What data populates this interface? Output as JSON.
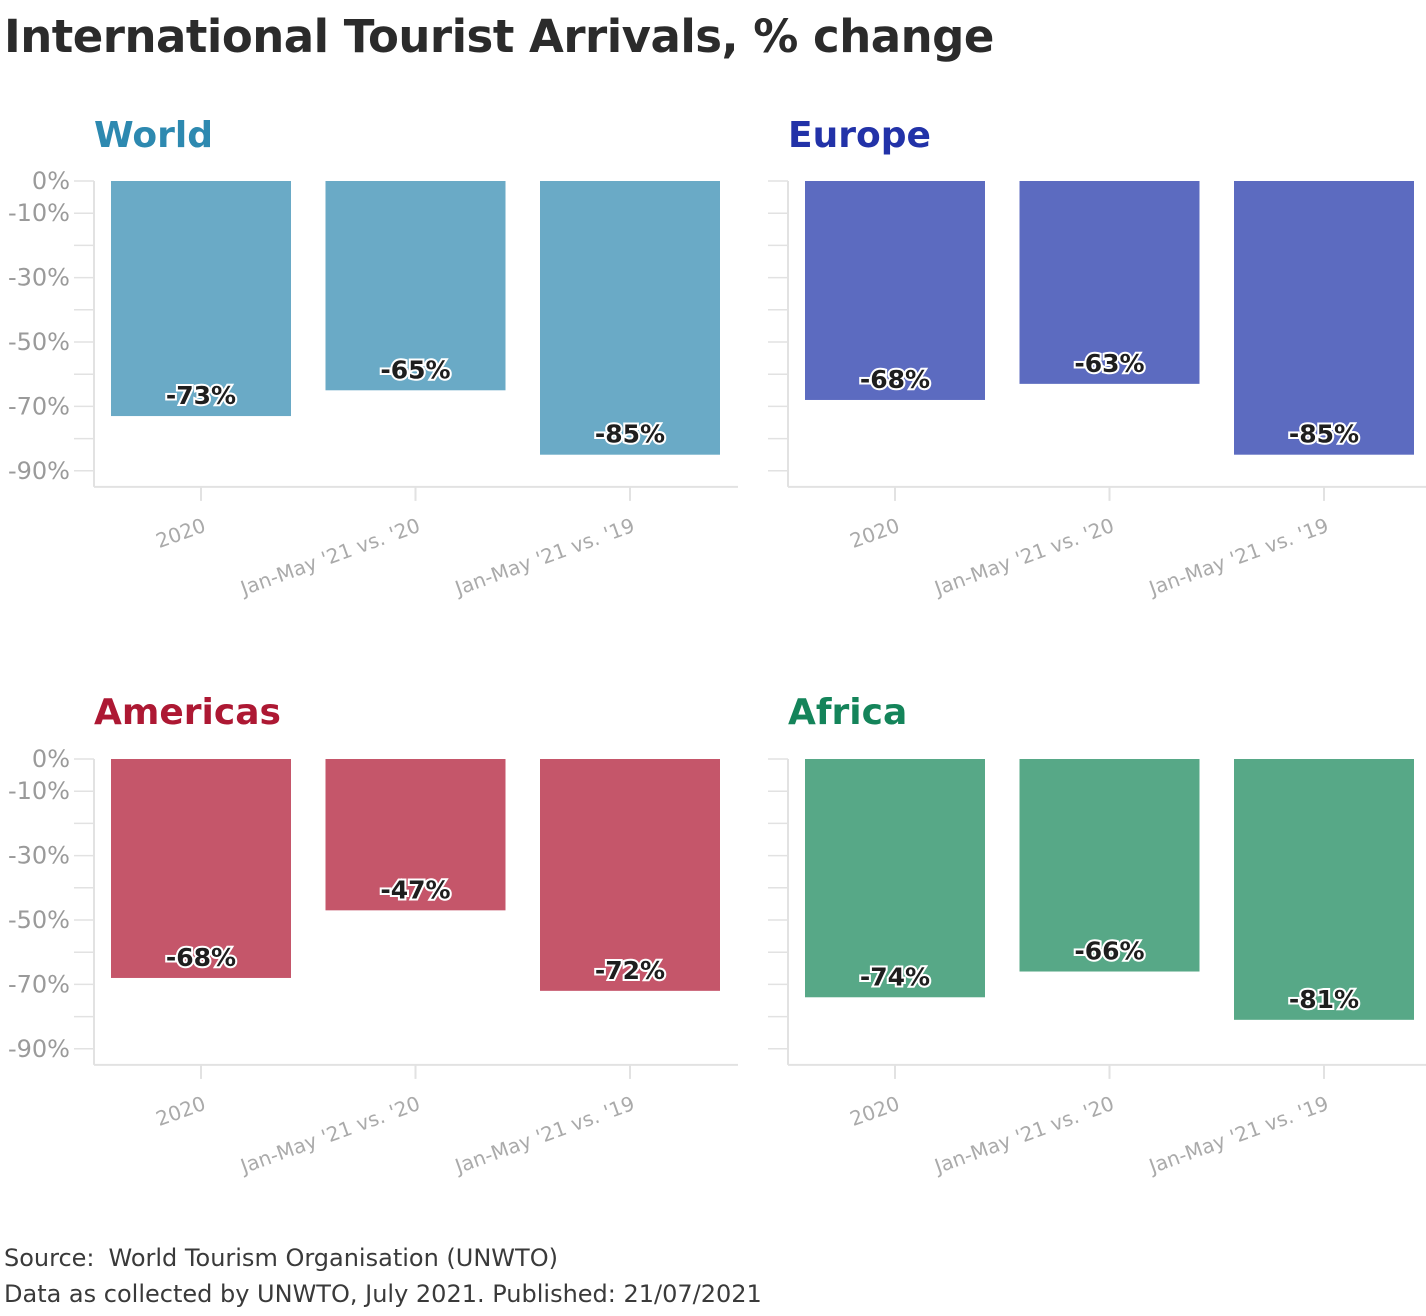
{
  "title": "International Tourist Arrivals, % change",
  "source_label": "Source:",
  "source_value": "World Tourism Organisation (UNWTO)",
  "note": "Data as collected by UNWTO, July 2021. Published: 21/07/2021",
  "chart_data": [
    {
      "type": "bar",
      "title": "World",
      "color": "#6aaac6",
      "title_color": "#2d89b0",
      "categories": [
        "2020",
        "Jan-May '21 vs. '20",
        "Jan-May '21 vs. '19"
      ],
      "values": [
        -73,
        -65,
        -85
      ],
      "value_labels": [
        "-73%",
        "-65%",
        "-85%"
      ],
      "ylim": [
        -95,
        0
      ],
      "yticks": [
        0,
        -10,
        -30,
        -50,
        -70,
        -90
      ],
      "ytick_labels": [
        "0%",
        "-10%",
        "-30%",
        "-50%",
        "-70%",
        "-90%"
      ]
    },
    {
      "type": "bar",
      "title": "Europe",
      "color": "#5c6bc0",
      "title_color": "#2232a8",
      "categories": [
        "2020",
        "Jan-May '21 vs. '20",
        "Jan-May '21 vs. '19"
      ],
      "values": [
        -68,
        -63,
        -85
      ],
      "value_labels": [
        "-68%",
        "-63%",
        "-85%"
      ],
      "ylim": [
        -95,
        0
      ],
      "yticks": [
        0,
        -10,
        -30,
        -50,
        -70,
        -90
      ],
      "ytick_labels": []
    },
    {
      "type": "bar",
      "title": "Americas",
      "color": "#c5566a",
      "title_color": "#ad1833",
      "categories": [
        "2020",
        "Jan-May '21 vs. '20",
        "Jan-May '21 vs. '19"
      ],
      "values": [
        -68,
        -47,
        -72
      ],
      "value_labels": [
        "-68%",
        "-47%",
        "-72%"
      ],
      "ylim": [
        -95,
        0
      ],
      "yticks": [
        0,
        -10,
        -30,
        -50,
        -70,
        -90
      ],
      "ytick_labels": [
        "0%",
        "-10%",
        "-30%",
        "-50%",
        "-70%",
        "-90%"
      ]
    },
    {
      "type": "bar",
      "title": "Africa",
      "color": "#57a887",
      "title_color": "#14845a",
      "categories": [
        "2020",
        "Jan-May '21 vs. '20",
        "Jan-May '21 vs. '19"
      ],
      "values": [
        -74,
        -66,
        -81
      ],
      "value_labels": [
        "-74%",
        "-66%",
        "-81%"
      ],
      "ylim": [
        -95,
        0
      ],
      "yticks": [
        0,
        -10,
        -30,
        -50,
        -70,
        -90
      ],
      "ytick_labels": []
    }
  ]
}
